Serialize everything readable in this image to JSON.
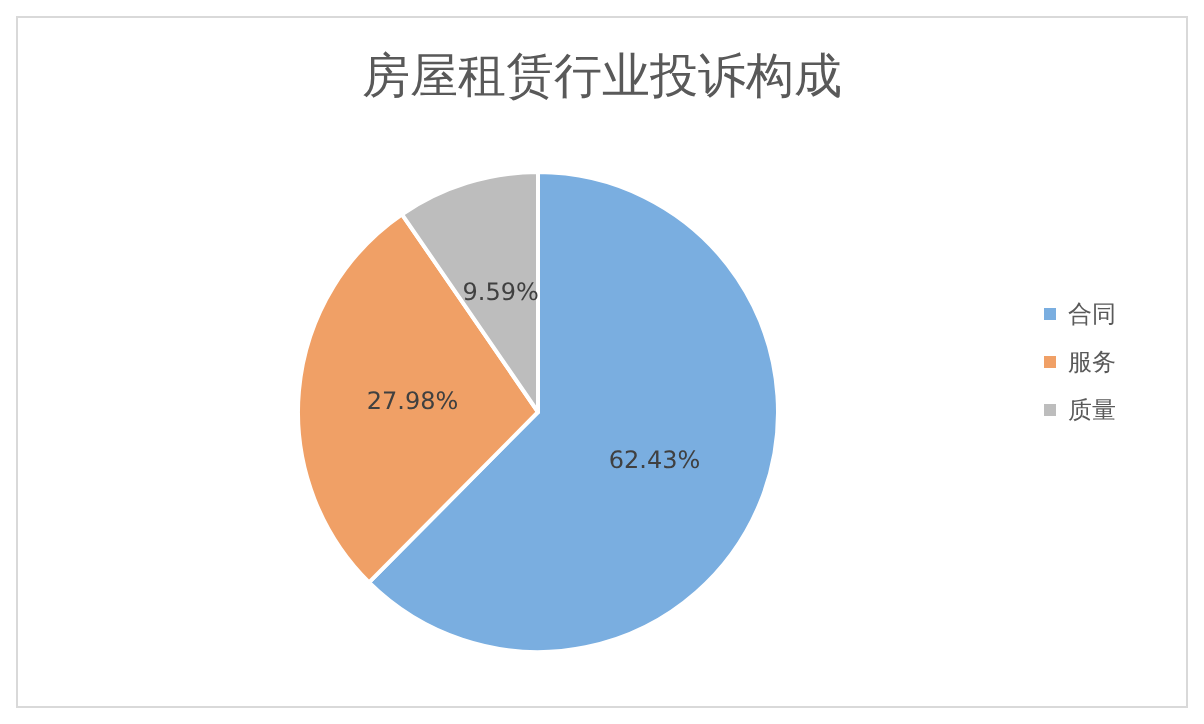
{
  "chart_data": {
    "type": "pie",
    "title": "房屋租赁行业投诉构成",
    "categories": [
      "合同",
      "服务",
      "质量"
    ],
    "values": [
      62.43,
      27.98,
      9.59
    ],
    "value_labels": [
      "62.43%",
      "27.98%",
      "9.59%"
    ],
    "colors": [
      "#7aaee0",
      "#f0a066",
      "#bdbdbd"
    ],
    "legend": "right"
  }
}
